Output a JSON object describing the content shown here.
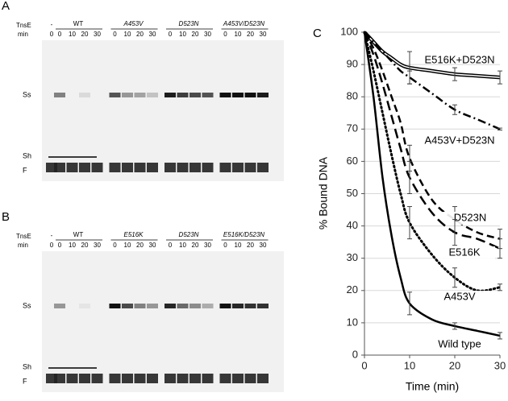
{
  "gels": [
    {
      "label": "A",
      "row_tnse": "TnsE",
      "row_min": "min",
      "control": "-",
      "control_min": "0",
      "groups": [
        {
          "name": "WT",
          "times": [
            "0",
            "10",
            "20",
            "30"
          ]
        },
        {
          "name": "A453V",
          "times": [
            "0",
            "10",
            "20",
            "30"
          ]
        },
        {
          "name": "D523N",
          "times": [
            "0",
            "10",
            "20",
            "30"
          ]
        },
        {
          "name": "A453V/D523N",
          "times": [
            "0",
            "10",
            "20",
            "30"
          ]
        }
      ],
      "bands": [
        "Ss",
        "Sh",
        "F"
      ]
    },
    {
      "label": "B",
      "row_tnse": "TnsE",
      "row_min": "min",
      "control": "-",
      "control_min": "0",
      "groups": [
        {
          "name": "WT",
          "times": [
            "0",
            "10",
            "20",
            "30"
          ]
        },
        {
          "name": "E516K",
          "times": [
            "0",
            "10",
            "20",
            "30"
          ]
        },
        {
          "name": "D523N",
          "times": [
            "0",
            "10",
            "20",
            "30"
          ]
        },
        {
          "name": "E516K/D523N",
          "times": [
            "0",
            "10",
            "20",
            "30"
          ]
        }
      ],
      "bands": [
        "Ss",
        "Sh",
        "F"
      ]
    }
  ],
  "chart_data": {
    "type": "line",
    "panel_label": "C",
    "y_label": "% Bound DNA",
    "x_label": "Time (min)",
    "x": [
      0,
      2,
      4,
      6,
      8,
      10,
      15,
      20,
      25,
      30
    ],
    "xlim": [
      0,
      30
    ],
    "xticks": [
      0,
      10,
      20,
      30
    ],
    "ylim": [
      0,
      100
    ],
    "yticks": [
      0,
      10,
      20,
      30,
      40,
      50,
      60,
      70,
      80,
      90,
      100
    ],
    "grid": true,
    "error_x": [
      10,
      20,
      30
    ],
    "series": [
      {
        "name": "E516K+D523N",
        "color": "#000000",
        "style": "double",
        "values": [
          100,
          97,
          94,
          92,
          90,
          89,
          88,
          87,
          86.5,
          86
        ],
        "errors": [
          5,
          2,
          2
        ]
      },
      {
        "name": "A453V+D523N",
        "color": "#000000",
        "style": "dashdot",
        "values": [
          100,
          97,
          94,
          91,
          88,
          86,
          81,
          76,
          73,
          70
        ],
        "errors": [
          2,
          1.5,
          0.3
        ]
      },
      {
        "name": "D523N",
        "color": "#000000",
        "style": "dashed",
        "values": [
          100,
          95,
          88,
          80,
          72,
          61,
          48,
          42,
          38,
          36
        ],
        "errors": [
          4,
          4,
          3
        ]
      },
      {
        "name": "E516K",
        "color": "#000000",
        "style": "longdash",
        "values": [
          100,
          93,
          84,
          74,
          64,
          55,
          44,
          38,
          36,
          33
        ],
        "errors": [
          5,
          4,
          3
        ]
      },
      {
        "name": "A453V",
        "color": "#000000",
        "style": "dotted",
        "values": [
          100,
          88,
          75,
          62,
          50,
          41,
          31,
          24,
          20,
          21
        ],
        "errors": [
          5,
          3,
          1
        ]
      },
      {
        "name": "Wild type",
        "color": "#000000",
        "style": "solid",
        "values": [
          100,
          80,
          55,
          37,
          24,
          16,
          11,
          9,
          7.5,
          6
        ],
        "errors": [
          3.5,
          1,
          1
        ]
      }
    ]
  }
}
